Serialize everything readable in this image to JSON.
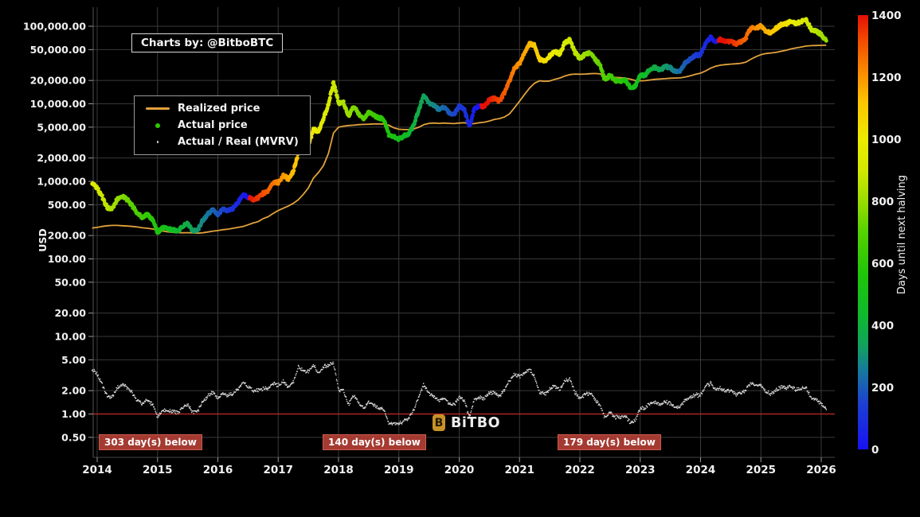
{
  "credit": {
    "text": "Charts by: @BitboBTC"
  },
  "watermark": {
    "icon": "B",
    "text": "BiTBO"
  },
  "legend": {
    "items": [
      {
        "label": "Realized price",
        "marker": "line"
      },
      {
        "label": "Actual price",
        "marker": "dot"
      },
      {
        "label": "Actual / Real (MVRV)",
        "marker": "small-dot"
      }
    ]
  },
  "colors": {
    "background": "#000000",
    "grid": "#3a3a3a",
    "axis_text": "#f2f2f2",
    "tick": "#999999",
    "realized_line": "#e2a23b",
    "actual_legend_dot": "#2ecc00",
    "mvrv_dot": "#d8d8d8",
    "mvrv_one_line": "#c62828",
    "annotation_bg": "#a43a31",
    "annotation_border": "#cf5b4d",
    "watermark_gold": "#c79328"
  },
  "axes": {
    "y_label": "USD",
    "y_ticks": [
      {
        "v": 100000,
        "label": "100,000.00"
      },
      {
        "v": 50000,
        "label": "50,000.00"
      },
      {
        "v": 20000,
        "label": "20,000.00"
      },
      {
        "v": 10000,
        "label": "10,000.00"
      },
      {
        "v": 5000,
        "label": "5,000.00"
      },
      {
        "v": 2000,
        "label": "2,000.00"
      },
      {
        "v": 1000,
        "label": "1,000.00"
      },
      {
        "v": 500,
        "label": "500.00"
      },
      {
        "v": 200,
        "label": "200.00"
      },
      {
        "v": 100,
        "label": "100.00"
      },
      {
        "v": 50,
        "label": "50.00"
      },
      {
        "v": 20,
        "label": "20.00"
      },
      {
        "v": 10,
        "label": "10.00"
      },
      {
        "v": 5,
        "label": "5.00"
      },
      {
        "v": 2,
        "label": "2.00"
      },
      {
        "v": 1,
        "label": "1.00"
      },
      {
        "v": 0.5,
        "label": "0.50"
      }
    ],
    "x_ticks": [
      2014,
      2015,
      2016,
      2017,
      2018,
      2019,
      2020,
      2021,
      2022,
      2023,
      2024,
      2025,
      2026
    ]
  },
  "colorbar": {
    "title": "Days until next halving",
    "min": 0,
    "max": 1400,
    "ticks": [
      1400,
      1200,
      1000,
      800,
      600,
      400,
      200,
      0
    ],
    "stops": [
      [
        0,
        "#1812f2"
      ],
      [
        150,
        "#1c41d0"
      ],
      [
        250,
        "#17789f"
      ],
      [
        330,
        "#12a061"
      ],
      [
        430,
        "#0fb92e"
      ],
      [
        560,
        "#1ec50a"
      ],
      [
        700,
        "#55d100"
      ],
      [
        800,
        "#9ade00"
      ],
      [
        900,
        "#d2e800"
      ],
      [
        1000,
        "#ecec00"
      ],
      [
        1120,
        "#fdc500"
      ],
      [
        1230,
        "#f88300"
      ],
      [
        1320,
        "#f14a00"
      ],
      [
        1400,
        "#e51005"
      ]
    ]
  },
  "annotations": [
    {
      "label": "303 day(s) below",
      "year": 2014.03
    },
    {
      "label": "140 day(s) below",
      "year": 2017.74
    },
    {
      "label": "179 day(s) below",
      "year": 2021.63
    }
  ],
  "chart_data": {
    "type": "scatter",
    "title": "Bitcoin actual price vs realized price with MVRV ratio, points colored by days until next halving",
    "yscale": "log",
    "ylim": [
      0.3,
      180000
    ],
    "xlim": [
      2013.93,
      2026.25
    ],
    "x_start_year": 2013.9167,
    "x_step_years": 0.0833333,
    "x_note": "monthly samples, Dec 2013 through Feb 2026",
    "halvings_decimal_years": [
      2016.52,
      2020.36,
      2024.3,
      2028.25
    ],
    "mvrv_rule": "mvrv = actual_price / realized_price, red reference line at 1.00",
    "actual_price": [
      950,
      815,
      630,
      455,
      445,
      590,
      640,
      580,
      480,
      390,
      340,
      375,
      320,
      218,
      254,
      244,
      236,
      230,
      263,
      284,
      230,
      236,
      314,
      377,
      430,
      368,
      437,
      416,
      448,
      531,
      673,
      624,
      575,
      609,
      700,
      742,
      963,
      965,
      1190,
      1080,
      1350,
      2300,
      2480,
      2875,
      4700,
      4340,
      6470,
      9900,
      19000,
      10200,
      10300,
      6930,
      9240,
      7500,
      6400,
      7750,
      7030,
      6630,
      6300,
      4020,
      3740,
      3460,
      3850,
      4100,
      5320,
      8560,
      12900,
      10080,
      9630,
      8300,
      9150,
      7570,
      7190,
      9350,
      8600,
      5000,
      8650,
      9450,
      9140,
      11350,
      11650,
      10780,
      13800,
      19700,
      29000,
      33100,
      45200,
      58800,
      57750,
      37300,
      35040,
      41460,
      47150,
      43790,
      61320,
      66900,
      46210,
      38480,
      43190,
      45540,
      37650,
      31790,
      19925,
      23290,
      20050,
      19430,
      20490,
      16500,
      16550,
      23130,
      23140,
      28470,
      29250,
      27220,
      30480,
      29230,
      25930,
      26960,
      34650,
      37720,
      42260,
      42580,
      61200,
      71330,
      63800,
      67500,
      62680,
      64620,
      58970,
      63330,
      70220,
      96400,
      93430,
      102400,
      84380,
      82550,
      94210,
      104600,
      107100,
      118000,
      108250,
      114050,
      121000,
      91000,
      87000,
      78000,
      65000
    ],
    "realized_price": [
      250,
      255,
      262,
      268,
      270,
      270,
      268,
      265,
      262,
      258,
      252,
      248,
      243,
      236,
      229,
      223,
      220,
      218,
      217,
      218,
      216,
      215,
      217,
      222,
      228,
      232,
      238,
      242,
      248,
      255,
      262,
      275,
      290,
      302,
      330,
      350,
      385,
      420,
      450,
      480,
      520,
      580,
      680,
      820,
      1100,
      1300,
      1600,
      2300,
      4200,
      5000,
      5150,
      5250,
      5300,
      5380,
      5420,
      5450,
      5500,
      5500,
      5480,
      5300,
      4900,
      4700,
      4650,
      4650,
      4750,
      5000,
      5400,
      5600,
      5650,
      5600,
      5650,
      5600,
      5550,
      5650,
      5700,
      5500,
      5550,
      5700,
      5800,
      6000,
      6300,
      6450,
      6750,
      7400,
      8900,
      10800,
      13200,
      16000,
      18500,
      19800,
      19500,
      19700,
      20700,
      21500,
      22800,
      23800,
      24200,
      24100,
      24200,
      24400,
      24600,
      24300,
      22800,
      22100,
      21900,
      21700,
      21500,
      20800,
      20000,
      19800,
      19900,
      20300,
      20700,
      20900,
      21100,
      21400,
      21500,
      21600,
      22200,
      23000,
      24000,
      24800,
      26500,
      28800,
      30500,
      31500,
      32000,
      32500,
      32800,
      33300,
      34500,
      37500,
      40500,
      43000,
      44500,
      45200,
      46000,
      47500,
      49000,
      51000,
      52500,
      54000,
      55500,
      56200,
      56500,
      56800,
      57000
    ]
  }
}
